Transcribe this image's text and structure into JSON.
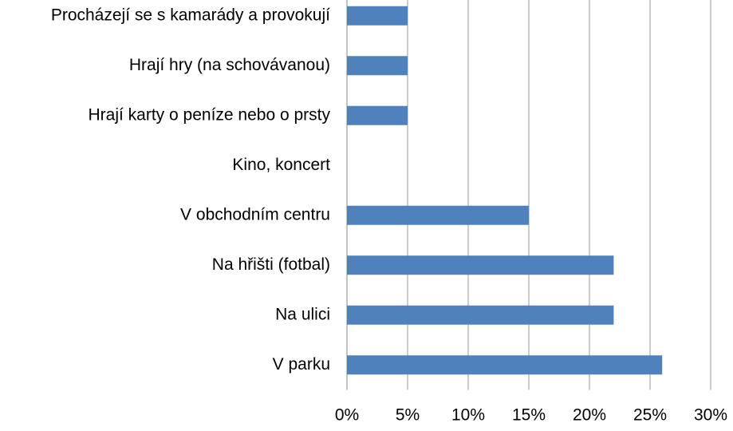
{
  "chart_data": {
    "type": "bar",
    "orientation": "horizontal",
    "categories": [
      "Procházejí se s kamarády a provokují",
      "Hrají hry (na schovávanou)",
      "Hrají karty o peníze nebo o prsty",
      "Kino, koncert",
      "V obchodním centru",
      "Na hřišti (fotbal)",
      "Na ulici",
      "V parku"
    ],
    "values": [
      5,
      5,
      5,
      0,
      15,
      22,
      22,
      26
    ],
    "color": "#4f81bd",
    "xlim": [
      0,
      30
    ],
    "xticks": [
      {
        "value": 0,
        "label": "0%"
      },
      {
        "value": 5,
        "label": "5%"
      },
      {
        "value": 10,
        "label": "10%"
      },
      {
        "value": 15,
        "label": "15%"
      },
      {
        "value": 20,
        "label": "20%"
      },
      {
        "value": 25,
        "label": "25%"
      },
      {
        "value": 30,
        "label": "30%"
      }
    ],
    "grid": true
  }
}
